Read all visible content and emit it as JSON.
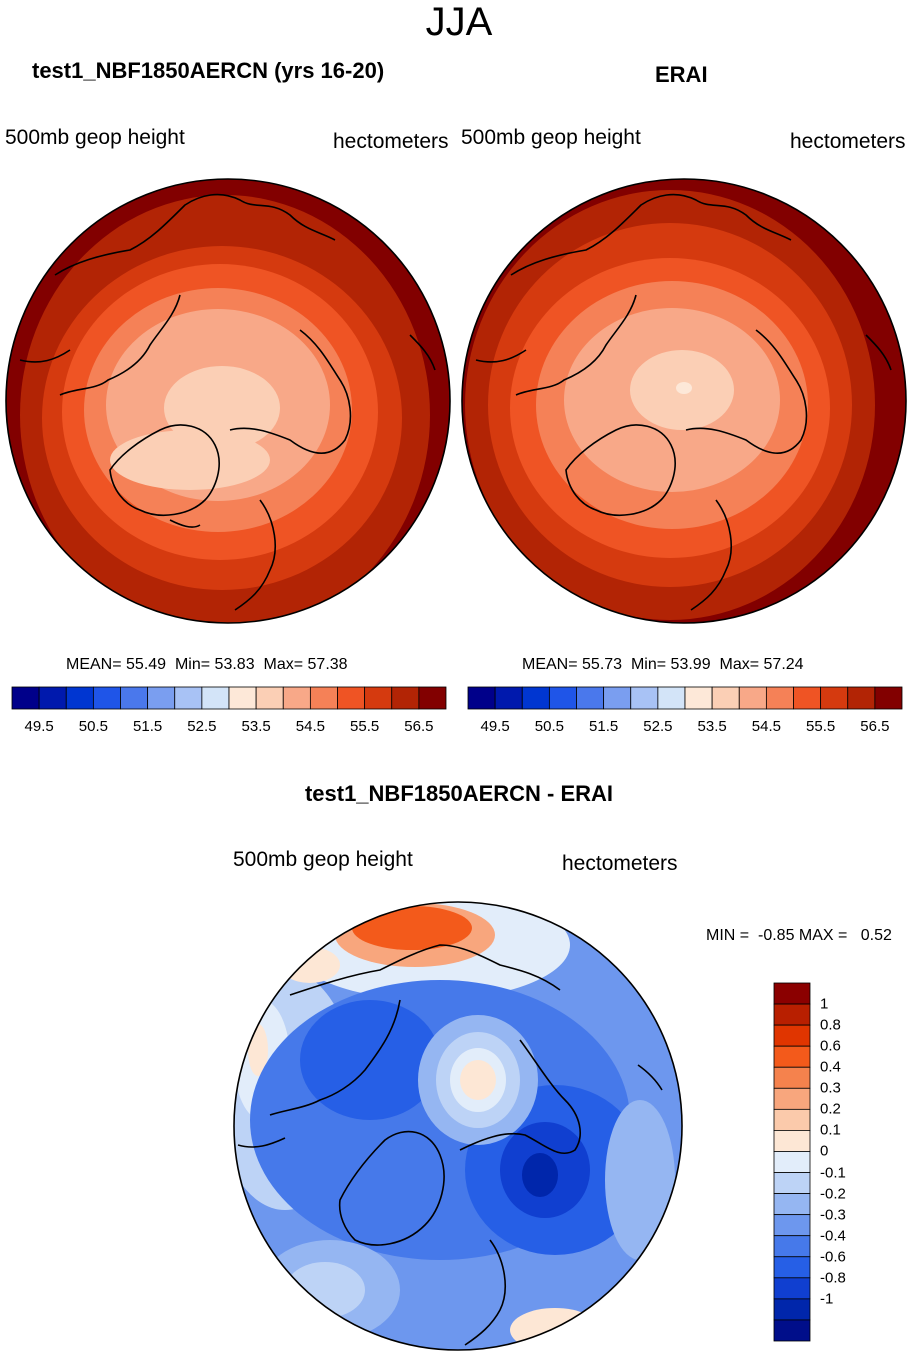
{
  "season": "JJA",
  "panels": [
    {
      "title": "test1_NBF1850AERCN (yrs 16-20)",
      "variable": "500mb geop height",
      "units": "hectometers",
      "stats": {
        "mean_label": "MEAN=",
        "mean": "55.49",
        "min_label": "Min=",
        "min": "53.83",
        "max_label": "Max=",
        "max": "57.38"
      }
    },
    {
      "title": "ERAI",
      "variable": "500mb geop height",
      "units": "hectometers",
      "stats": {
        "mean_label": "MEAN=",
        "mean": "55.73",
        "min_label": "Min=",
        "min": "53.99",
        "max_label": "Max=",
        "max": "57.24"
      }
    }
  ],
  "diff": {
    "title": "test1_NBF1850AERCN - ERAI",
    "variable": "500mb geop height",
    "units": "hectometers",
    "minmax": "MIN =  -0.85 MAX =   0.52"
  },
  "colorbar_main": {
    "colors": [
      "#00008a",
      "#0019ad",
      "#0036d1",
      "#1f55e8",
      "#4a78ec",
      "#7a9ef0",
      "#a8c2f5",
      "#d3e4f8",
      "#fde8d8",
      "#fbcfb5",
      "#f8a888",
      "#f58157",
      "#ef5424",
      "#d53a0f",
      "#b22405",
      "#820000"
    ],
    "labels": [
      "49.5",
      "50.5",
      "51.5",
      "52.5",
      "53.5",
      "54.5",
      "55.5",
      "56.5"
    ]
  },
  "colorbar_diff": {
    "colors": [
      "#8b0000",
      "#b81f00",
      "#e03500",
      "#f35a1b",
      "#f5824d",
      "#f8a67d",
      "#fbcaab",
      "#fde7d5",
      "#e2edfa",
      "#bdd3f6",
      "#95b6f2",
      "#6d97ee",
      "#4679ea",
      "#265fe6",
      "#103fd0",
      "#0026ab",
      "#000e8a"
    ],
    "labels": [
      "1",
      "0.8",
      "0.6",
      "0.4",
      "0.3",
      "0.2",
      "0.1",
      "0",
      "-0.1",
      "-0.2",
      "-0.3",
      "-0.4",
      "-0.6",
      "-0.8",
      "-1"
    ]
  },
  "chart_data": [
    {
      "type": "heatmap",
      "title": "test1_NBF1850AERCN (yrs 16-20)",
      "projection": "north polar stereographic",
      "variable": "500mb geop height",
      "units": "hectometers",
      "mean": 55.49,
      "min": 53.83,
      "max": 57.38,
      "contour_levels": [
        49.5,
        50,
        50.5,
        51,
        51.5,
        52,
        52.5,
        53,
        53.5,
        54,
        54.5,
        55,
        55.5,
        56,
        56.5
      ]
    },
    {
      "type": "heatmap",
      "title": "ERAI",
      "projection": "north polar stereographic",
      "variable": "500mb geop height",
      "units": "hectometers",
      "mean": 55.73,
      "min": 53.99,
      "max": 57.24,
      "contour_levels": [
        49.5,
        50,
        50.5,
        51,
        51.5,
        52,
        52.5,
        53,
        53.5,
        54,
        54.5,
        55,
        55.5,
        56,
        56.5
      ]
    },
    {
      "type": "heatmap",
      "title": "test1_NBF1850AERCN - ERAI",
      "projection": "north polar stereographic",
      "variable": "500mb geop height",
      "units": "hectometers",
      "min": -0.85,
      "max": 0.52,
      "contour_levels": [
        -1,
        -0.8,
        -0.6,
        -0.4,
        -0.3,
        -0.2,
        -0.1,
        0,
        0.1,
        0.2,
        0.3,
        0.4,
        0.6,
        0.8,
        1
      ]
    }
  ]
}
